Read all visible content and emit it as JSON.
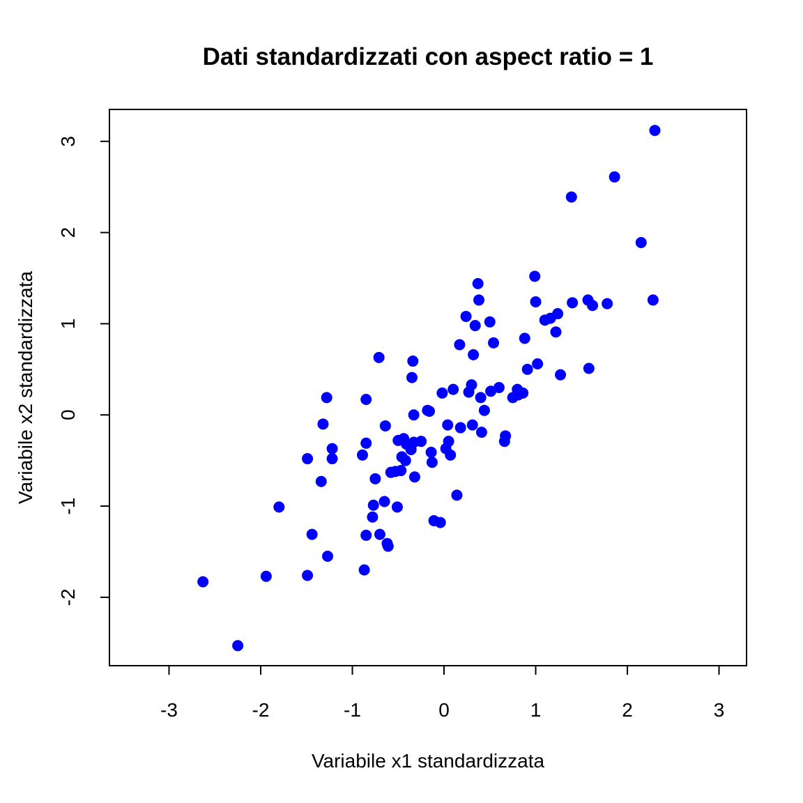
{
  "chart_data": {
    "type": "scatter",
    "title": "Dati standardizzati con aspect ratio = 1",
    "xlabel": "Variabile x1 standardizzata",
    "ylabel": "Variabile x2 standardizzata",
    "xlim": [
      -3.65,
      3.3
    ],
    "ylim": [
      -2.75,
      3.35
    ],
    "x_ticks": [
      -3,
      -2,
      -1,
      0,
      1,
      2,
      3
    ],
    "x_tick_labels": [
      "-3",
      "-2",
      "-1",
      "0",
      "1",
      "2",
      "3"
    ],
    "y_ticks": [
      -2,
      -1,
      0,
      1,
      2,
      3
    ],
    "y_tick_labels": [
      "-2",
      "-1",
      "0",
      "1",
      "2",
      "3"
    ],
    "grid": false,
    "legend": "none",
    "marker_color": "#0000ff",
    "points": [
      [
        -2.63,
        -1.83
      ],
      [
        -2.25,
        -2.53
      ],
      [
        -1.94,
        -1.77
      ],
      [
        -1.8,
        -1.01
      ],
      [
        -1.49,
        -1.76
      ],
      [
        -1.49,
        -0.48
      ],
      [
        -1.44,
        -1.31
      ],
      [
        -1.34,
        -0.73
      ],
      [
        -1.32,
        -0.1
      ],
      [
        -1.28,
        0.19
      ],
      [
        -1.27,
        -1.55
      ],
      [
        -1.22,
        -0.37
      ],
      [
        -1.22,
        -0.48
      ],
      [
        -0.89,
        -0.44
      ],
      [
        -0.87,
        -1.7
      ],
      [
        -0.85,
        -1.32
      ],
      [
        -0.85,
        0.17
      ],
      [
        -0.85,
        -0.31
      ],
      [
        -0.78,
        -1.12
      ],
      [
        -0.77,
        -0.99
      ],
      [
        -0.75,
        -0.7
      ],
      [
        -0.71,
        0.63
      ],
      [
        -0.7,
        -1.31
      ],
      [
        -0.65,
        -0.95
      ],
      [
        -0.64,
        -0.12
      ],
      [
        -0.62,
        -1.41
      ],
      [
        -0.61,
        -1.44
      ],
      [
        -0.58,
        -0.63
      ],
      [
        -0.53,
        -0.62
      ],
      [
        -0.51,
        -1.01
      ],
      [
        -0.5,
        -0.28
      ],
      [
        -0.47,
        -0.61
      ],
      [
        -0.46,
        -0.46
      ],
      [
        -0.44,
        -0.26
      ],
      [
        -0.42,
        -0.5
      ],
      [
        -0.41,
        -0.32
      ],
      [
        -0.36,
        -0.38
      ],
      [
        -0.35,
        0.41
      ],
      [
        -0.34,
        0.59
      ],
      [
        -0.33,
        0.0
      ],
      [
        -0.33,
        -0.3
      ],
      [
        -0.32,
        -0.68
      ],
      [
        -0.25,
        -0.29
      ],
      [
        -0.18,
        0.05
      ],
      [
        -0.16,
        0.04
      ],
      [
        -0.14,
        -0.41
      ],
      [
        -0.13,
        -0.52
      ],
      [
        -0.11,
        -1.16
      ],
      [
        -0.04,
        -1.18
      ],
      [
        -0.02,
        0.24
      ],
      [
        0.02,
        -0.37
      ],
      [
        0.04,
        -0.11
      ],
      [
        0.05,
        -0.29
      ],
      [
        0.07,
        -0.44
      ],
      [
        0.1,
        0.28
      ],
      [
        0.14,
        -0.88
      ],
      [
        0.17,
        0.77
      ],
      [
        0.18,
        -0.14
      ],
      [
        0.24,
        1.08
      ],
      [
        0.27,
        0.25
      ],
      [
        0.3,
        0.33
      ],
      [
        0.31,
        -0.11
      ],
      [
        0.32,
        0.66
      ],
      [
        0.34,
        0.98
      ],
      [
        0.37,
        1.44
      ],
      [
        0.38,
        1.26
      ],
      [
        0.4,
        0.19
      ],
      [
        0.41,
        -0.19
      ],
      [
        0.44,
        0.05
      ],
      [
        0.5,
        1.02
      ],
      [
        0.51,
        0.26
      ],
      [
        0.54,
        0.79
      ],
      [
        0.6,
        0.3
      ],
      [
        0.66,
        -0.29
      ],
      [
        0.67,
        -0.23
      ],
      [
        0.75,
        0.19
      ],
      [
        0.8,
        0.28
      ],
      [
        0.81,
        0.22
      ],
      [
        0.86,
        0.24
      ],
      [
        0.88,
        0.84
      ],
      [
        0.91,
        0.5
      ],
      [
        0.99,
        1.52
      ],
      [
        1.0,
        1.24
      ],
      [
        1.02,
        0.56
      ],
      [
        1.1,
        1.04
      ],
      [
        1.16,
        1.06
      ],
      [
        1.22,
        0.91
      ],
      [
        1.24,
        1.11
      ],
      [
        1.27,
        0.44
      ],
      [
        1.39,
        2.39
      ],
      [
        1.4,
        1.23
      ],
      [
        1.57,
        1.26
      ],
      [
        1.58,
        0.51
      ],
      [
        1.62,
        1.2
      ],
      [
        1.78,
        1.22
      ],
      [
        1.86,
        2.61
      ],
      [
        2.15,
        1.89
      ],
      [
        2.28,
        1.26
      ],
      [
        2.3,
        3.12
      ]
    ]
  }
}
